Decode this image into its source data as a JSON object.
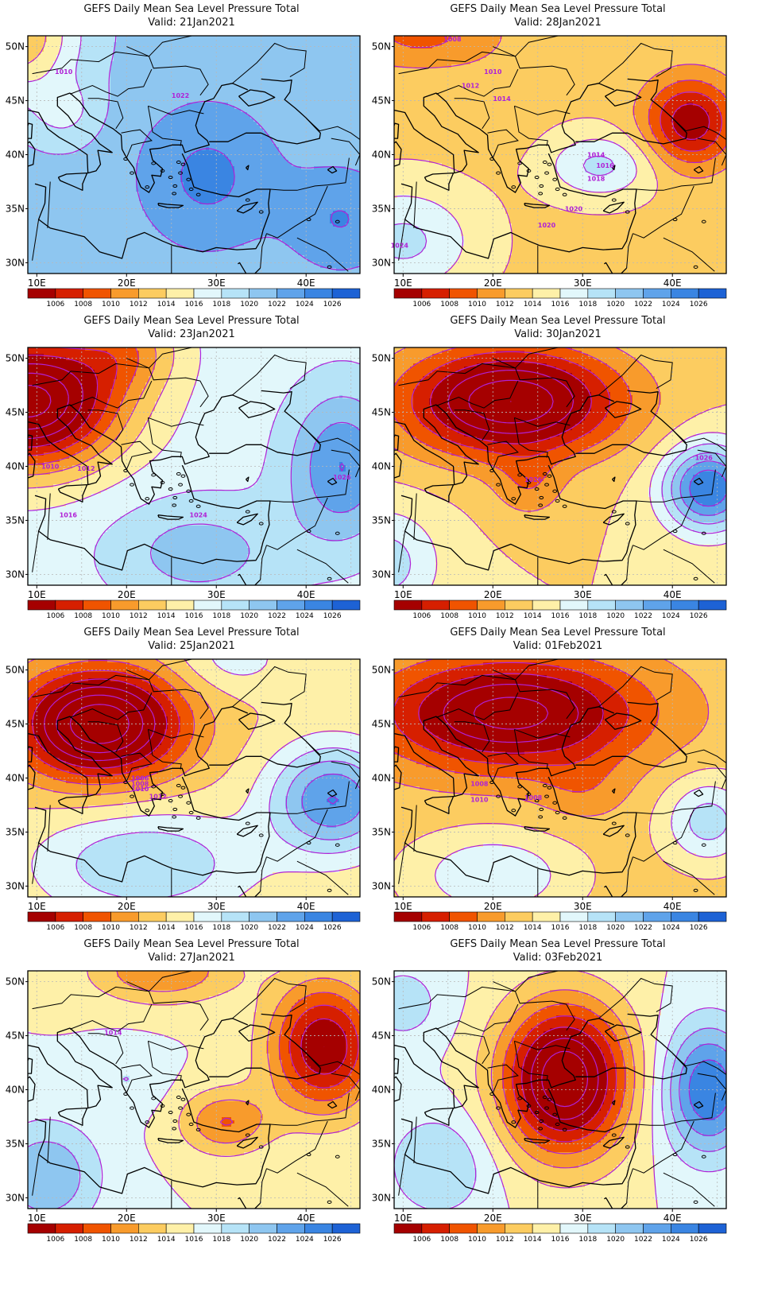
{
  "figure": {
    "panels": [
      {
        "title": "GEFS Daily Mean Sea Level Pressure Total",
        "valid": "Valid: 21Jan2021",
        "contour_labels": [
          "1010",
          "1022"
        ]
      },
      {
        "title": "GEFS Daily Mean Sea Level Pressure Total",
        "valid": "Valid: 28Jan2021",
        "contour_labels": [
          "1008",
          "1010",
          "1012",
          "1014",
          "1014",
          "1016",
          "1018",
          "1020",
          "1020",
          "1024"
        ]
      },
      {
        "title": "GEFS Daily Mean Sea Level Pressure Total",
        "valid": "Valid: 23Jan2021",
        "contour_labels": [
          "1010",
          "1012",
          "1016",
          "1024",
          "1026"
        ]
      },
      {
        "title": "GEFS Daily Mean Sea Level Pressure Total",
        "valid": "Valid: 30Jan2021",
        "contour_labels": [
          "1026",
          "1026"
        ]
      },
      {
        "title": "GEFS Daily Mean Sea Level Pressure Total",
        "valid": "Valid: 25Jan2021",
        "contour_labels": [
          "1006",
          "1008",
          "1010",
          "1012"
        ]
      },
      {
        "title": "GEFS Daily Mean Sea Level Pressure Total",
        "valid": "Valid: 01Feb2021",
        "contour_labels": [
          "1008",
          "1010",
          "1008"
        ]
      },
      {
        "title": "GEFS Daily Mean Sea Level Pressure Total",
        "valid": "Valid: 27Jan2021",
        "contour_labels": [
          "1014"
        ]
      },
      {
        "title": "GEFS Daily Mean Sea Level Pressure Total",
        "valid": "Valid: 03Feb2021",
        "contour_labels": []
      }
    ],
    "x_ticks": [
      "10E",
      "20E",
      "30E",
      "40E"
    ],
    "y_ticks": [
      "50N",
      "45N",
      "40N",
      "35N",
      "30N"
    ],
    "colorbar": {
      "labels": [
        "1006",
        "1008",
        "1010",
        "1012",
        "1014",
        "1016",
        "1018",
        "1020",
        "1022",
        "1024",
        "1026"
      ],
      "colors": [
        "#a50000",
        "#d61f00",
        "#f05400",
        "#f89b2c",
        "#fccc60",
        "#fef0a8",
        "#e2f7fb",
        "#b6e3f7",
        "#8ec6f0",
        "#5fa3ea",
        "#3a85e2",
        "#1d62d5"
      ]
    },
    "contour_color": "#b021d6"
  }
}
